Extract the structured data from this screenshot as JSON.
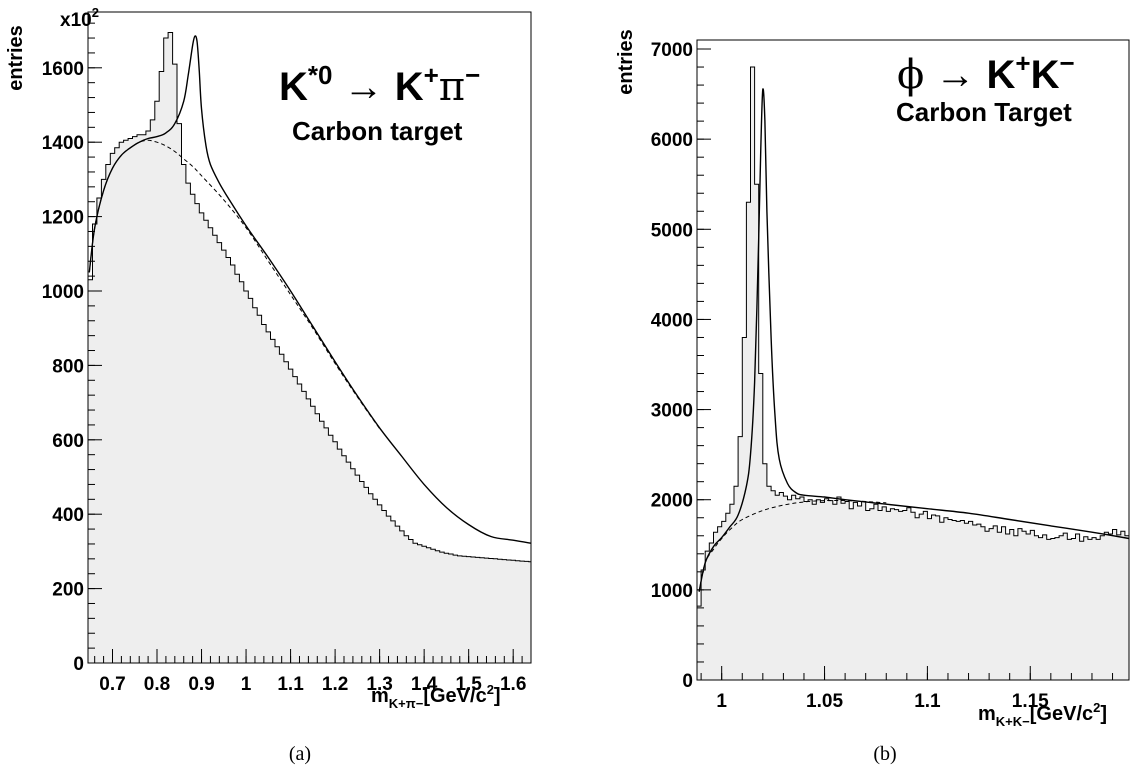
{
  "chart_data": [
    {
      "type": "histogram",
      "panel_caption": "(a)",
      "title": {
        "parts": [
          "K",
          "*0",
          " → K",
          "+",
          "π",
          "−"
        ]
      },
      "subtitle": "Carbon target",
      "ylabel": "entries",
      "y_multiplier": "x10",
      "y_multiplier_exp": "2",
      "xlabel": {
        "m": "m",
        "sub": "K+π−",
        "unit_pre": "[GeV/c",
        "unit_exp": "2",
        "unit_post": "]"
      },
      "xlim": [
        0.645,
        1.64
      ],
      "ylim": [
        0,
        1750
      ],
      "x_ticks": [
        0.7,
        0.8,
        0.9,
        1.0,
        1.1,
        1.2,
        1.3,
        1.4,
        1.5,
        1.6
      ],
      "x_tick_labels": [
        "0.7",
        "0.8",
        "0.9",
        "1",
        "1.1",
        "1.2",
        "1.3",
        "1.4",
        "1.5",
        "1.6"
      ],
      "y_ticks": [
        0,
        200,
        400,
        600,
        800,
        1000,
        1200,
        1400,
        1600
      ],
      "y_tick_labels": [
        "0",
        "200",
        "400",
        "600",
        "800",
        "1000",
        "1200",
        "1400",
        "1600"
      ],
      "bin_width": 0.01,
      "histogram": {
        "x_start": 0.645,
        "values": [
          1030,
          1180,
          1250,
          1300,
          1340,
          1370,
          1385,
          1400,
          1405,
          1410,
          1415,
          1420,
          1420,
          1430,
          1460,
          1510,
          1590,
          1680,
          1695,
          1610,
          1450,
          1340,
          1290,
          1260,
          1235,
          1210,
          1190,
          1170,
          1150,
          1130,
          1110,
          1090,
          1070,
          1045,
          1025,
          1000,
          980,
          955,
          935,
          910,
          890,
          870,
          850,
          830,
          810,
          790,
          770,
          750,
          730,
          710,
          690,
          670,
          650,
          632,
          612,
          595,
          575,
          557,
          540,
          522,
          505,
          488,
          472,
          455,
          440,
          425,
          410,
          395,
          382,
          368,
          355,
          342,
          332,
          322,
          318,
          314,
          310,
          306,
          302,
          298,
          295,
          293,
          290,
          288,
          287,
          286,
          285,
          284,
          283,
          282,
          281,
          280,
          279,
          278,
          277,
          276,
          275,
          274,
          273,
          272
        ]
      },
      "fit_curve": {
        "x": [
          0.648,
          0.66,
          0.68,
          0.7,
          0.72,
          0.74,
          0.76,
          0.78,
          0.8,
          0.82,
          0.84,
          0.86,
          0.87,
          0.88,
          0.885,
          0.89,
          0.895,
          0.9,
          0.91,
          0.92,
          0.94,
          0.96,
          1.0,
          1.05,
          1.1,
          1.15,
          1.2,
          1.25,
          1.3,
          1.35,
          1.4,
          1.45,
          1.5,
          1.55,
          1.6,
          1.64
        ],
        "y": [
          1050,
          1170,
          1270,
          1330,
          1365,
          1385,
          1400,
          1410,
          1415,
          1425,
          1450,
          1510,
          1580,
          1660,
          1685,
          1670,
          1590,
          1490,
          1390,
          1340,
          1290,
          1250,
          1175,
          1090,
          1000,
          905,
          810,
          718,
          632,
          555,
          480,
          418,
          372,
          340,
          330,
          322
        ]
      },
      "background_curve": {
        "x": [
          0.648,
          0.66,
          0.68,
          0.7,
          0.72,
          0.74,
          0.76,
          0.78,
          0.8,
          0.82,
          0.84,
          0.86,
          0.88,
          0.9,
          0.95,
          1.0,
          1.05,
          1.1,
          1.15,
          1.2,
          1.25,
          1.3
        ],
        "y": [
          1050,
          1170,
          1270,
          1330,
          1365,
          1385,
          1400,
          1405,
          1400,
          1390,
          1375,
          1355,
          1335,
          1310,
          1245,
          1170,
          1080,
          990,
          900,
          805,
          715,
          630
        ]
      }
    },
    {
      "type": "histogram",
      "panel_caption": "(b)",
      "title": {
        "parts": [
          "ϕ",
          " → K",
          "+",
          "K",
          "−"
        ]
      },
      "subtitle": "Carbon Target",
      "ylabel": "entries",
      "xlabel": {
        "m": "m",
        "sub": "K+K−",
        "unit_pre": "[GeV/c",
        "unit_exp": "2",
        "unit_post": "]"
      },
      "xlim": [
        0.988,
        1.198
      ],
      "ylim": [
        0,
        7100
      ],
      "x_ticks": [
        1.0,
        1.05,
        1.1,
        1.15
      ],
      "x_tick_labels": [
        "1",
        "1.05",
        "1.1",
        "1.15"
      ],
      "y_ticks": [
        0,
        1000,
        2000,
        3000,
        4000,
        5000,
        6000,
        7000
      ],
      "y_tick_labels": [
        "0",
        "1000",
        "2000",
        "3000",
        "4000",
        "5000",
        "6000",
        "7000"
      ],
      "bin_width": 0.002,
      "histogram": {
        "x_start": 0.988,
        "values": [
          820,
          1220,
          1430,
          1520,
          1640,
          1700,
          1760,
          1850,
          1950,
          2150,
          2700,
          3800,
          5300,
          6800,
          5500,
          3400,
          2400,
          2150,
          2100,
          2050,
          2080,
          2040,
          2000,
          2050,
          2010,
          2030,
          1980,
          2000,
          1950,
          2000,
          1970,
          2010,
          1990,
          1950,
          2030,
          1960,
          1980,
          1900,
          1970,
          1930,
          1980,
          1880,
          1900,
          1950,
          1880,
          1920,
          1870,
          1900,
          1890,
          1870,
          1880,
          1910,
          1860,
          1800,
          1840,
          1870,
          1790,
          1830,
          1820,
          1750,
          1800,
          1780,
          1770,
          1760,
          1770,
          1740,
          1760,
          1720,
          1730,
          1700,
          1650,
          1680,
          1710,
          1640,
          1700,
          1620,
          1670,
          1600,
          1680,
          1650,
          1620,
          1660,
          1600,
          1580,
          1610,
          1560,
          1570,
          1580,
          1600,
          1630,
          1560,
          1570,
          1620,
          1540,
          1590,
          1560,
          1580,
          1560,
          1600,
          1640,
          1620,
          1670,
          1610,
          1650,
          1600
        ]
      },
      "fit_curve": {
        "x": [
          0.989,
          0.992,
          0.996,
          1.0,
          1.004,
          1.008,
          1.012,
          1.014,
          1.016,
          1.018,
          1.019,
          1.02,
          1.021,
          1.022,
          1.024,
          1.026,
          1.028,
          1.032,
          1.036,
          1.04,
          1.05,
          1.06,
          1.08,
          1.1,
          1.12,
          1.14,
          1.16,
          1.18,
          1.198
        ],
        "y": [
          980,
          1300,
          1480,
          1580,
          1700,
          1830,
          2150,
          2500,
          3300,
          4900,
          5900,
          6550,
          6200,
          5200,
          3800,
          2900,
          2450,
          2180,
          2080,
          2050,
          2030,
          2000,
          1950,
          1900,
          1850,
          1780,
          1710,
          1640,
          1570
        ]
      },
      "background_curve": {
        "x": [
          0.989,
          0.992,
          0.996,
          1.0,
          1.005,
          1.01,
          1.02,
          1.03,
          1.04,
          1.05,
          1.06,
          1.07,
          1.08
        ],
        "y": [
          980,
          1300,
          1450,
          1570,
          1690,
          1780,
          1880,
          1940,
          1975,
          1990,
          1990,
          1980,
          1965
        ]
      }
    }
  ]
}
